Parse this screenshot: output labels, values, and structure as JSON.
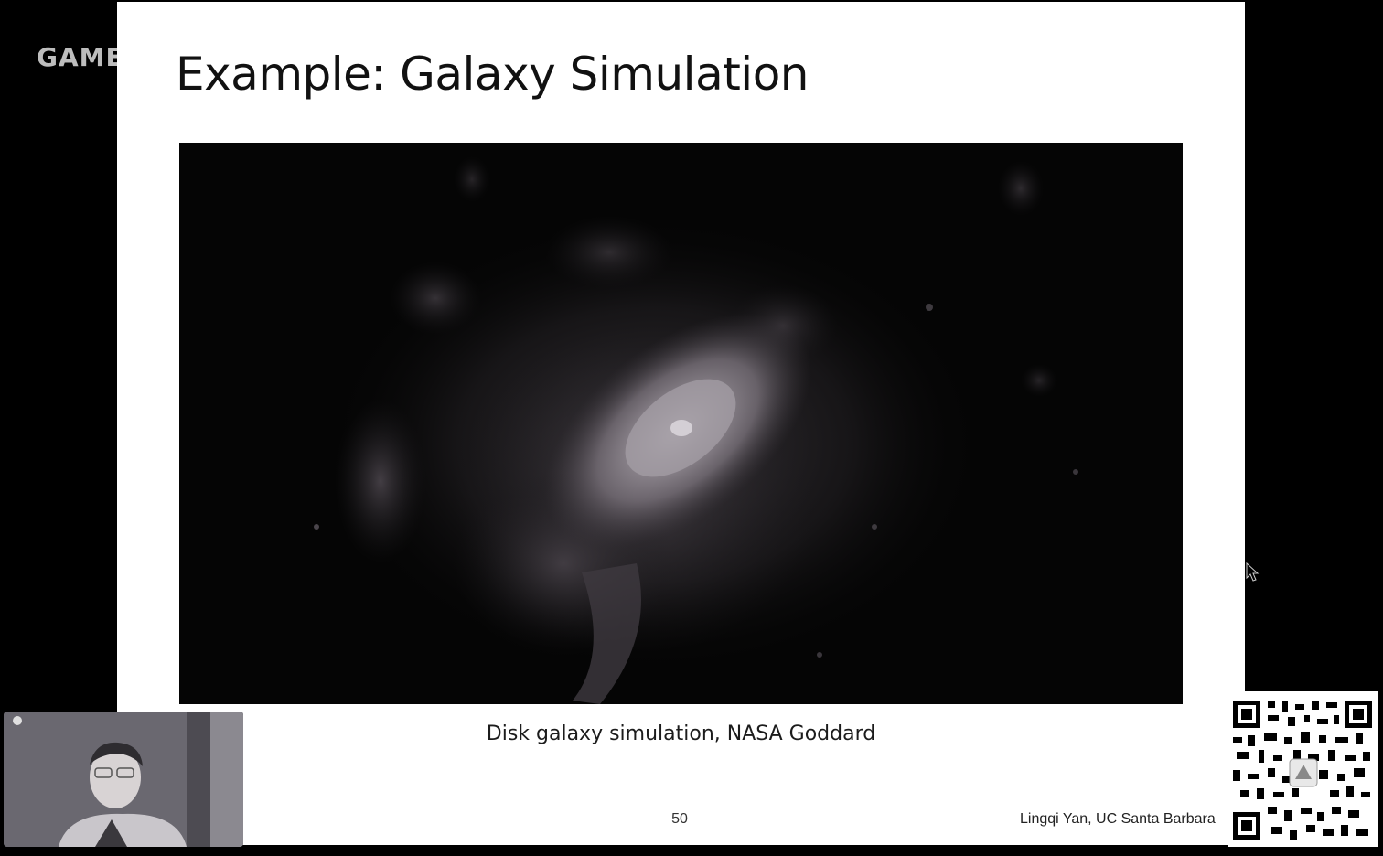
{
  "brand": {
    "label": "GAME"
  },
  "slide": {
    "title": "Example: Galaxy Simulation",
    "caption": "Disk galaxy simulation, NASA Goddard",
    "page_number": "50",
    "author": "Lingqi Yan, UC Santa Barbara"
  },
  "video": {
    "icon": "galaxy-simulation-video"
  },
  "webcam": {
    "icon": "presenter-webcam"
  },
  "qr": {
    "icon": "qr-code"
  },
  "colors": {
    "background": "#000000",
    "slide_background": "#ffffff",
    "title_text": "#111111",
    "galaxy_core": "#c7c2c8"
  }
}
